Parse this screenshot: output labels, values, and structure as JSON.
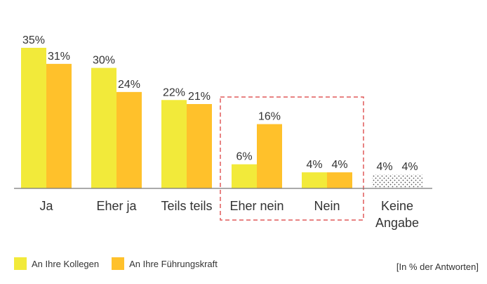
{
  "chart_data": {
    "type": "bar",
    "categories": [
      {
        "lines": [
          "Ja"
        ]
      },
      {
        "lines": [
          "Eher ja"
        ]
      },
      {
        "lines": [
          "Teils teils"
        ]
      },
      {
        "lines": [
          "Eher nein"
        ]
      },
      {
        "lines": [
          "Nein"
        ]
      },
      {
        "lines": [
          "Keine",
          "Angabe"
        ]
      }
    ],
    "series": [
      {
        "name": "An Ihre Kollegen",
        "color": "#F2EA3A",
        "values": [
          35,
          30,
          22,
          6,
          4,
          4
        ],
        "labels": [
          "35%",
          "30%",
          "22%",
          "6%",
          "4%",
          "4%"
        ]
      },
      {
        "name": "An Ihre Führungskraft",
        "color": "#FFC12B",
        "values": [
          31,
          24,
          21,
          16,
          4,
          4
        ],
        "labels": [
          "31%",
          "24%",
          "21%",
          "16%",
          "4%",
          "4%"
        ]
      }
    ],
    "hatched_categories": [
      5
    ],
    "highlighted_categories": [
      3,
      4
    ],
    "highlight_color": "#E05A5A",
    "ylim": [
      0,
      35
    ],
    "xlabel": "",
    "ylabel": "",
    "title": "",
    "legend_position": "bottom-left",
    "note": "[In % der Antworten]"
  }
}
